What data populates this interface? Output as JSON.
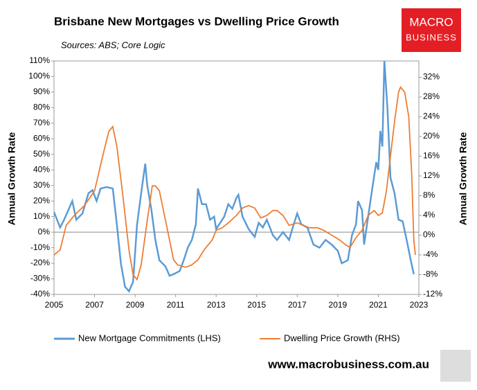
{
  "chart_data": {
    "type": "line",
    "title": "Brisbane New Mortgages vs Dwelling Price Growth",
    "subtitle": "Sources: ABS; Core Logic",
    "logo": [
      "MACRO",
      "BUSINESS"
    ],
    "footer": "www.macrobusiness.com.au",
    "ylabel": "Annual Growth Rate",
    "y2label": "Annual Growth Rate",
    "xlim": [
      2005,
      2023
    ],
    "xticks": [
      2005,
      2007,
      2009,
      2011,
      2013,
      2015,
      2017,
      2019,
      2021,
      2023
    ],
    "ylim": [
      -40,
      110
    ],
    "yticks": [
      {
        "value": -40,
        "label": "-40%"
      },
      {
        "value": -30,
        "label": "-30%"
      },
      {
        "value": -20,
        "label": "-20%"
      },
      {
        "value": -10,
        "label": "-10%"
      },
      {
        "value": 0,
        "label": "0%"
      },
      {
        "value": 10,
        "label": "10%"
      },
      {
        "value": 20,
        "label": "20%"
      },
      {
        "value": 30,
        "label": "30%"
      },
      {
        "value": 40,
        "label": "40%"
      },
      {
        "value": 50,
        "label": "50%"
      },
      {
        "value": 60,
        "label": "60%"
      },
      {
        "value": 70,
        "label": "70%"
      },
      {
        "value": 80,
        "label": "80%"
      },
      {
        "value": 90,
        "label": "90%"
      },
      {
        "value": 100,
        "label": "100%"
      },
      {
        "value": 110,
        "label": "110%"
      }
    ],
    "y2lim": [
      -12,
      35.3
    ],
    "y2ticks": [
      {
        "value": -12,
        "label": "-12%"
      },
      {
        "value": -8,
        "label": "-8%"
      },
      {
        "value": -4,
        "label": "-4%"
      },
      {
        "value": 0,
        "label": "0%"
      },
      {
        "value": 4,
        "label": "4%"
      },
      {
        "value": 8,
        "label": "8%"
      },
      {
        "value": 12,
        "label": "12%"
      },
      {
        "value": 16,
        "label": "16%"
      },
      {
        "value": 20,
        "label": "20%"
      },
      {
        "value": 24,
        "label": "24%"
      },
      {
        "value": 28,
        "label": "28%"
      },
      {
        "value": 32,
        "label": "32%"
      }
    ],
    "series": [
      {
        "name": "New Mortgage Commitments (LHS)",
        "color": "#5b9bd5",
        "axis": "y",
        "x": [
          2005.0,
          2005.3,
          2005.5,
          2005.9,
          2006.1,
          2006.4,
          2006.7,
          2006.9,
          2007.1,
          2007.3,
          2007.6,
          2007.9,
          2008.1,
          2008.3,
          2008.5,
          2008.7,
          2008.9,
          2009.1,
          2009.3,
          2009.5,
          2009.6,
          2009.8,
          2010.0,
          2010.2,
          2010.5,
          2010.7,
          2010.9,
          2011.2,
          2011.4,
          2011.6,
          2011.8,
          2012.0,
          2012.1,
          2012.3,
          2012.5,
          2012.7,
          2012.9,
          2013.0,
          2013.2,
          2013.4,
          2013.6,
          2013.8,
          2014.0,
          2014.1,
          2014.3,
          2014.6,
          2014.9,
          2015.1,
          2015.3,
          2015.5,
          2015.8,
          2016.0,
          2016.3,
          2016.6,
          2016.8,
          2017.0,
          2017.2,
          2017.5,
          2017.8,
          2018.1,
          2018.4,
          2018.7,
          2019.0,
          2019.2,
          2019.5,
          2019.7,
          2019.9,
          2020.0,
          2020.2,
          2020.3,
          2020.5,
          2020.7,
          2020.9,
          2021.0,
          2021.1,
          2021.2,
          2021.3,
          2021.45,
          2021.6,
          2021.8,
          2022.0,
          2022.2,
          2022.4,
          2022.6,
          2022.75
        ],
        "values": [
          13,
          3,
          8,
          20,
          8,
          12,
          25,
          27,
          20,
          28,
          29,
          28,
          5,
          -20,
          -35,
          -38,
          -32,
          5,
          25,
          44,
          30,
          15,
          -5,
          -18,
          -22,
          -28,
          -27,
          -25,
          -18,
          -10,
          -5,
          5,
          28,
          18,
          18,
          8,
          10,
          2,
          6,
          10,
          18,
          15,
          22,
          24,
          10,
          2,
          -3,
          6,
          3,
          8,
          -2,
          -5,
          0,
          -5,
          4,
          12,
          5,
          3,
          -8,
          -10,
          -5,
          -8,
          -12,
          -20,
          -18,
          -2,
          5,
          20,
          14,
          -8,
          10,
          28,
          45,
          40,
          65,
          55,
          110,
          80,
          35,
          25,
          8,
          7,
          -5,
          -18,
          -27
        ]
      },
      {
        "name": "Dwelling Price Growth (RHS)",
        "color": "#ed7d31",
        "axis": "y2",
        "x": [
          2005.0,
          2005.3,
          2005.6,
          2006.0,
          2006.5,
          2007.0,
          2007.4,
          2007.7,
          2007.9,
          2008.1,
          2008.4,
          2008.7,
          2008.9,
          2009.1,
          2009.3,
          2009.6,
          2009.85,
          2010.0,
          2010.2,
          2010.4,
          2010.7,
          2010.9,
          2011.1,
          2011.5,
          2011.8,
          2012.1,
          2012.4,
          2012.8,
          2013.0,
          2013.3,
          2013.6,
          2014.0,
          2014.3,
          2014.6,
          2014.9,
          2015.2,
          2015.5,
          2015.8,
          2016.0,
          2016.3,
          2016.6,
          2017.0,
          2017.3,
          2017.6,
          2018.0,
          2018.3,
          2018.7,
          2019.1,
          2019.4,
          2019.6,
          2019.9,
          2020.2,
          2020.5,
          2020.8,
          2021.0,
          2021.2,
          2021.4,
          2021.6,
          2021.8,
          2022.0,
          2022.1,
          2022.3,
          2022.5,
          2022.65,
          2022.75,
          2022.83
        ],
        "values": [
          -4,
          -3,
          2,
          4,
          6,
          9,
          16,
          21,
          22,
          18,
          8,
          -3,
          -8,
          -9,
          -6,
          3,
          10,
          10,
          9,
          5,
          -1,
          -5,
          -6,
          -6.5,
          -6,
          -5,
          -3,
          -1,
          1,
          1.5,
          2.5,
          4,
          5.5,
          6,
          5.5,
          3.5,
          4,
          5,
          5,
          4,
          2,
          2.5,
          2,
          1.5,
          1.5,
          1,
          0,
          -1,
          -2,
          -2.5,
          -0.5,
          1,
          4,
          5,
          4,
          4.5,
          9,
          16,
          23,
          29,
          30,
          29,
          24,
          12,
          -1,
          -4
        ]
      }
    ]
  }
}
